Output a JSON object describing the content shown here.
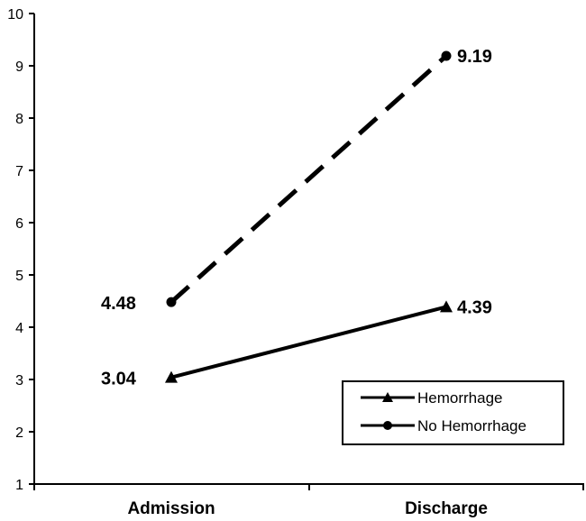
{
  "chart_data": {
    "type": "line",
    "categories": [
      "Admission",
      "Discharge"
    ],
    "ylim": [
      1,
      10
    ],
    "yticks": [
      1,
      2,
      3,
      4,
      5,
      6,
      7,
      8,
      9,
      10
    ],
    "grid": false,
    "legend_position": "bottom-right",
    "series": [
      {
        "name": "Hemorrhage",
        "values": [
          3.04,
          4.39
        ],
        "labels": [
          "3.04",
          "4.39"
        ],
        "marker": "triangle",
        "line_style": "solid",
        "color": "#000000"
      },
      {
        "name": "No Hemorrhage",
        "values": [
          4.48,
          9.19
        ],
        "labels": [
          "4.48",
          "9.19"
        ],
        "marker": "circle",
        "line_style": "dashed",
        "color": "#000000"
      }
    ]
  }
}
